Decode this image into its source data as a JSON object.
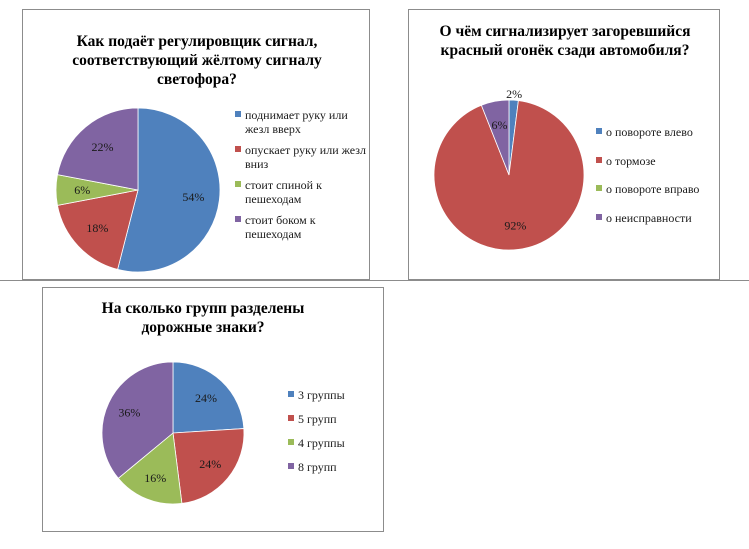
{
  "chart_data": [
    {
      "type": "pie",
      "title": "Как подаёт регулировщик сигнал, соответствующий жёлтому сигналу светофора?",
      "categories": [
        "поднимает руку или жезл вверх",
        "опускает руку или жезл вниз",
        "стоит спиной к пешеходам",
        "стоит боком к пешеходам"
      ],
      "values": [
        54,
        18,
        6,
        22
      ],
      "value_labels": [
        "54%",
        "18%",
        "6%",
        "22%"
      ],
      "colors": [
        "#4f81bd",
        "#c0504d",
        "#9bbb59",
        "#8064a2"
      ],
      "legend": "right"
    },
    {
      "type": "pie",
      "title": "О чём сигнализирует загоревшийся красный огонёк сзади автомобиля?",
      "categories": [
        "о повороте влево",
        "о тормозе",
        "о повороте вправо",
        "о неисправности"
      ],
      "values": [
        2,
        92,
        0,
        6
      ],
      "value_labels": [
        "2%",
        "92%",
        "",
        "6%"
      ],
      "colors": [
        "#4f81bd",
        "#c0504d",
        "#9bbb59",
        "#8064a2"
      ],
      "legend": "right"
    },
    {
      "type": "pie",
      "title": "На сколько групп разделены дорожные знаки?",
      "categories": [
        "3 группы",
        "5 групп",
        "4 группы",
        "8 групп"
      ],
      "values": [
        24,
        24,
        16,
        36
      ],
      "value_labels": [
        "24%",
        "24%",
        "16%",
        "36%"
      ],
      "colors": [
        "#4f81bd",
        "#c0504d",
        "#9bbb59",
        "#8064a2"
      ],
      "legend": "right"
    }
  ]
}
